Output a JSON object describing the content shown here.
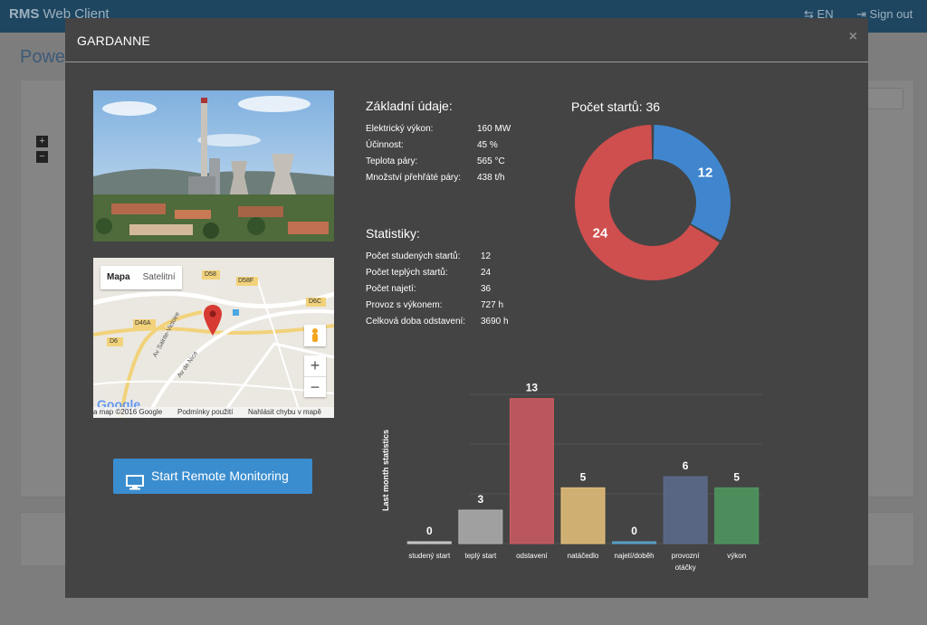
{
  "app": {
    "brand_bold": "RMS",
    "brand_rest": " Web Client",
    "lang": "EN",
    "signout": "Sign out",
    "bg_title": "Powe"
  },
  "modal": {
    "title": "GARDANNE",
    "close": "×"
  },
  "map": {
    "tab_map": "Mapa",
    "tab_sat": "Satelitní",
    "footer_data": "a map ©2016 Google",
    "footer_terms": "Podmínky použití",
    "footer_report": "Nahlásit chybu v mapě",
    "google": "Google",
    "roads": [
      "D58",
      "D58F",
      "D6C",
      "D46A",
      "D6",
      "Av Sainte-Victoire",
      "Av de Nice"
    ],
    "zoom_in": "+",
    "zoom_out": "−"
  },
  "basic": {
    "title": "Základní údaje:",
    "rows": [
      {
        "k": "Elektrický výkon:",
        "v": "160 MW"
      },
      {
        "k": "Účinnost:",
        "v": "45 %"
      },
      {
        "k": "Teplota páry:",
        "v": "565 °C"
      },
      {
        "k": "Množství přehřáté páry:",
        "v": "438 t/h"
      }
    ]
  },
  "stats": {
    "title": "Statistiky:",
    "rows": [
      {
        "k": "Počet studených startů:",
        "v": "12"
      },
      {
        "k": "Počet teplých startů:",
        "v": "24"
      },
      {
        "k": "Počet najetí:",
        "v": "36"
      },
      {
        "k": "Provoz s výkonem:",
        "v": "727 h"
      },
      {
        "k": "Celková doba odstavení:",
        "v": "3690 h"
      }
    ]
  },
  "button": {
    "label": "Start Remote Monitoring"
  },
  "colors": {
    "blue": "#3a8dcf",
    "red": "#d05050",
    "gray": "#b0b0b0",
    "yellow": "#e8c06a",
    "lightblue": "#5a9bc8",
    "slate": "#5a6a8a",
    "green": "#4a9a5a"
  },
  "chart_data": [
    {
      "type": "pie",
      "title": "Počet startů: 36",
      "values": [
        12,
        24
      ],
      "colors": [
        "#3f86cf",
        "#cf4e4e"
      ]
    },
    {
      "type": "bar",
      "ylabel": "Last month statistics",
      "categories": [
        "studený start",
        "teplý start",
        "odstavení",
        "natáčedlo",
        "najetí/doběh",
        "provozní otáčky",
        "výkon"
      ],
      "values": [
        0,
        3,
        13,
        5,
        0,
        6,
        5
      ],
      "colors": [
        "#cfcfcf",
        "#b0b0b0",
        "#cf5a63",
        "#e9c27a",
        "#5aa5d0",
        "#5c6c8e",
        "#4f9a5f"
      ],
      "ylim": [
        0,
        15
      ]
    }
  ]
}
